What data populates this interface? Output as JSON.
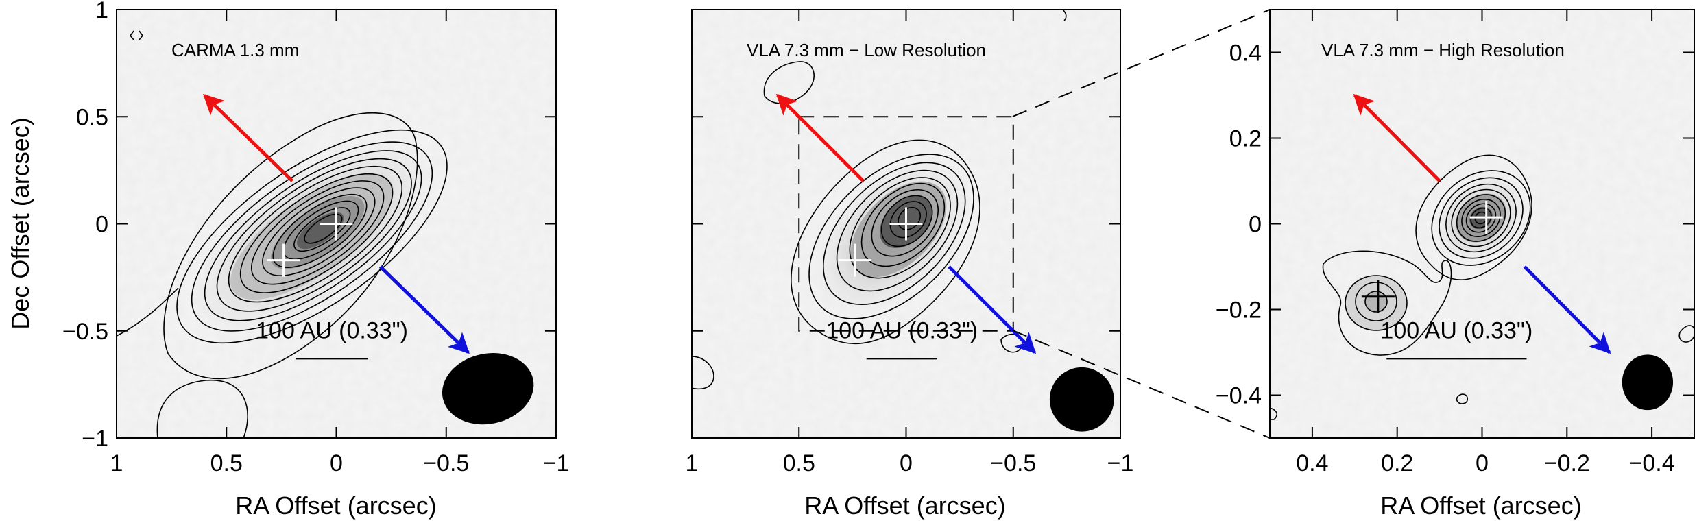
{
  "chart_data": [
    {
      "type": "contour",
      "panel_title": "CARMA 1.3 mm",
      "xlabel": "RA Offset (arcsec)",
      "ylabel": "Dec Offset (arcsec)",
      "xlim": [
        1,
        -1
      ],
      "ylim": [
        -1,
        1
      ],
      "x_ticks": [
        1,
        0.5,
        0,
        -0.5,
        -1
      ],
      "x_tick_labels": [
        "1",
        "0.5",
        "0",
        "−0.5",
        "−1"
      ],
      "y_ticks": [
        1,
        0.5,
        0,
        -0.5,
        -1
      ],
      "y_tick_labels": [
        "1",
        "0.5",
        "0",
        "−0.5",
        "−1"
      ],
      "sources": [
        {
          "x": 0.0,
          "y": 0.0
        },
        {
          "x": 0.24,
          "y": -0.17
        }
      ],
      "outflow_arrows": [
        {
          "color": "#ee1111",
          "from": [
            0.2,
            0.2
          ],
          "to": [
            0.6,
            0.6
          ]
        },
        {
          "color": "#1111dd",
          "from": [
            -0.2,
            -0.2
          ],
          "to": [
            -0.6,
            -0.6
          ]
        }
      ],
      "scale_bar": {
        "label": "100 AU (0.33\")",
        "length_arcsec": 0.33
      },
      "beam": {
        "major_arcsec": 0.42,
        "minor_arcsec": 0.32,
        "center": [
          -0.69,
          -0.77
        ]
      }
    },
    {
      "type": "contour",
      "panel_title": "VLA 7.3 mm − Low Resolution",
      "xlabel": "RA Offset (arcsec)",
      "xlim": [
        1,
        -1
      ],
      "ylim": [
        -1,
        1
      ],
      "x_ticks": [
        1,
        0.5,
        0,
        -0.5,
        -1
      ],
      "x_tick_labels": [
        "1",
        "0.5",
        "0",
        "−0.5",
        "−1"
      ],
      "sources": [
        {
          "x": 0.0,
          "y": 0.0
        },
        {
          "x": 0.24,
          "y": -0.17
        }
      ],
      "outflow_arrows": [
        {
          "color": "#ee1111",
          "from": [
            0.2,
            0.2
          ],
          "to": [
            0.6,
            0.6
          ]
        },
        {
          "color": "#1111dd",
          "from": [
            -0.2,
            -0.2
          ],
          "to": [
            -0.6,
            -0.6
          ]
        }
      ],
      "zoom_box": {
        "x": [
          0.5,
          -0.5
        ],
        "y": [
          -0.5,
          0.5
        ]
      },
      "scale_bar": {
        "label": "100 AU (0.33\")",
        "length_arcsec": 0.33
      },
      "beam": {
        "major_arcsec": 0.3,
        "minor_arcsec": 0.3,
        "center": [
          -0.82,
          -0.82
        ]
      }
    },
    {
      "type": "contour",
      "panel_title": "VLA 7.3 mm − High Resolution",
      "xlabel": "RA Offset (arcsec)",
      "xlim": [
        0.5,
        -0.5
      ],
      "ylim": [
        -0.5,
        0.5
      ],
      "x_ticks": [
        0.4,
        0.2,
        0,
        -0.2,
        -0.4
      ],
      "x_tick_labels": [
        "0.4",
        "0.2",
        "0",
        "−0.2",
        "−0.4"
      ],
      "y_ticks": [
        0.4,
        0.2,
        0,
        -0.2,
        -0.4
      ],
      "y_tick_labels": [
        "0.4",
        "0.2",
        "0",
        "−0.2",
        "−0.4"
      ],
      "sources": [
        {
          "x": -0.01,
          "y": 0.015
        },
        {
          "x": 0.245,
          "y": -0.17
        }
      ],
      "outflow_arrows": [
        {
          "color": "#ee1111",
          "from": [
            0.1,
            0.1
          ],
          "to": [
            0.3,
            0.3
          ]
        },
        {
          "color": "#1111dd",
          "from": [
            -0.1,
            -0.1
          ],
          "to": [
            -0.3,
            -0.3
          ]
        }
      ],
      "scale_bar": {
        "label": "100 AU (0.33\")",
        "length_arcsec": 0.33
      },
      "beam": {
        "major_arcsec": 0.12,
        "minor_arcsec": 0.09,
        "center": [
          -0.39,
          -0.37
        ]
      }
    }
  ]
}
